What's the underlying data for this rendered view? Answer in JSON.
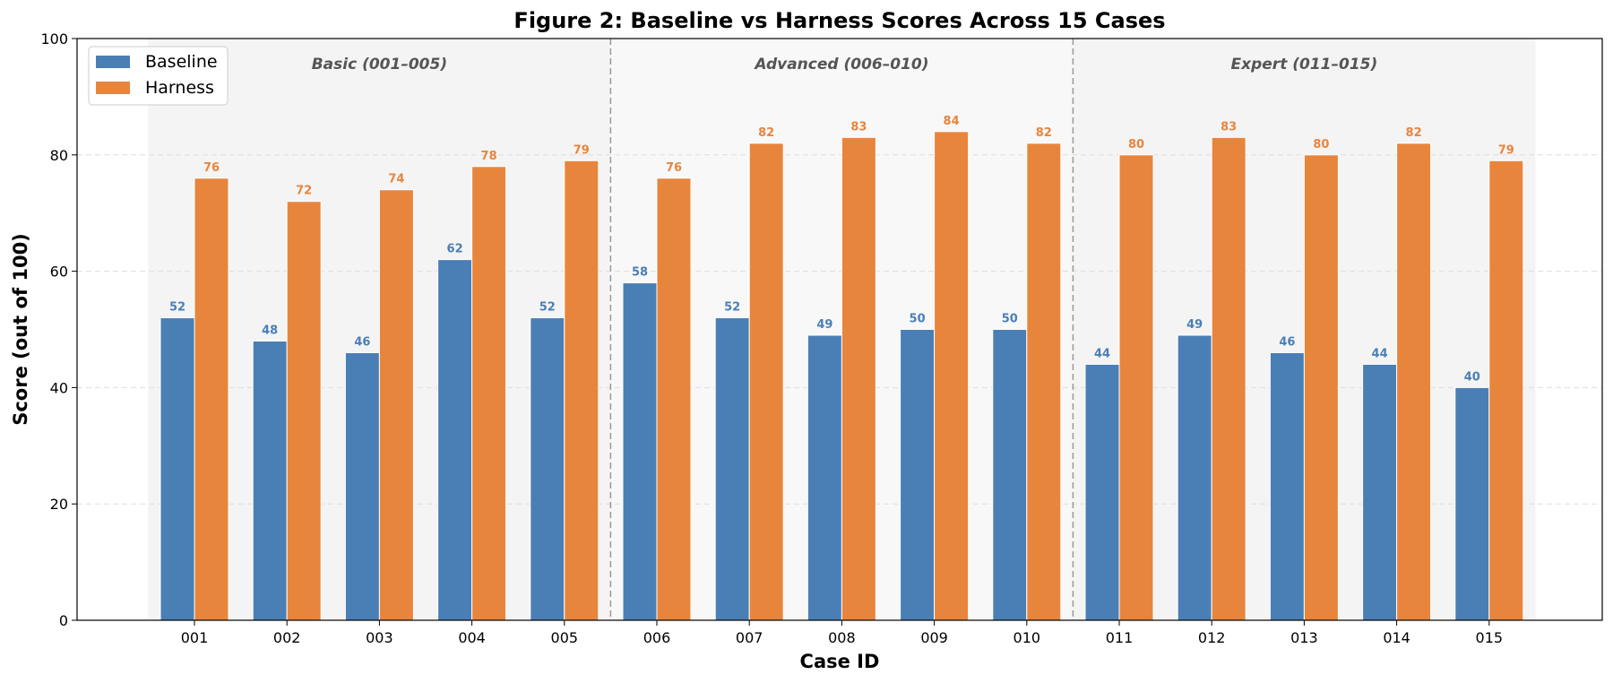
{
  "chart_data": {
    "type": "bar",
    "title": "Figure 2: Baseline vs Harness Scores Across 15 Cases",
    "xlabel": "Case ID",
    "ylabel": "Score (out of 100)",
    "ylim": [
      0,
      100
    ],
    "yticks": [
      "0",
      "20",
      "40",
      "60",
      "80",
      "100"
    ],
    "categories": [
      "001",
      "002",
      "003",
      "004",
      "005",
      "006",
      "007",
      "008",
      "009",
      "010",
      "011",
      "012",
      "013",
      "014",
      "015"
    ],
    "series": [
      {
        "name": "Baseline",
        "color": "#4a7fb5",
        "values": [
          52,
          48,
          46,
          62,
          52,
          58,
          52,
          49,
          50,
          50,
          44,
          49,
          46,
          44,
          40
        ]
      },
      {
        "name": "Harness",
        "color": "#e8853d",
        "values": [
          76,
          72,
          74,
          78,
          79,
          76,
          82,
          83,
          84,
          82,
          80,
          83,
          80,
          82,
          79
        ]
      }
    ],
    "groups": [
      {
        "label": "Basic (001–005)",
        "start": 0,
        "end": 4
      },
      {
        "label": "Advanced (006–010)",
        "start": 5,
        "end": 9
      },
      {
        "label": "Expert (011–015)",
        "start": 10,
        "end": 14
      }
    ],
    "legend_position": "top-left",
    "grid": true
  }
}
